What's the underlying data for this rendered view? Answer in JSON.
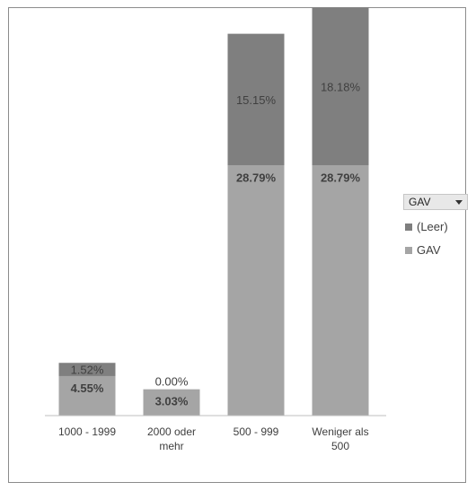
{
  "chart_data": {
    "type": "bar",
    "stacked": true,
    "categories": [
      [
        "1000 - 1999"
      ],
      [
        "2000 oder",
        "mehr"
      ],
      [
        "500 - 999"
      ],
      [
        "Weniger als",
        "500"
      ]
    ],
    "series": [
      {
        "name": "GAV",
        "color": "#a5a5a5",
        "values": [
          4.55,
          3.03,
          28.79,
          28.79
        ],
        "labels": [
          "4.55%",
          "3.03%",
          "28.79%",
          "28.79%"
        ]
      },
      {
        "name": "(Leer)",
        "color": "#7f7f7f",
        "values": [
          1.52,
          0.0,
          15.15,
          18.18
        ],
        "labels": [
          "1.52%",
          "0.00%",
          "15.15%",
          "18.18%"
        ]
      }
    ],
    "ylim": [
      0,
      47
    ],
    "grid": false,
    "legend_position": "right"
  },
  "legend": {
    "filter_label": "GAV",
    "filter_icon": "chevron-down-icon",
    "items": [
      {
        "label": "(Leer)",
        "color": "#7f7f7f"
      },
      {
        "label": "GAV",
        "color": "#a5a5a5"
      }
    ]
  }
}
